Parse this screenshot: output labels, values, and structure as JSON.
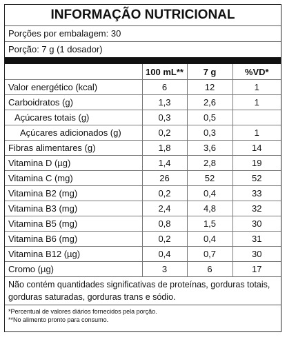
{
  "header": {
    "title": "INFORMAÇÃO NUTRICIONAL",
    "servings": "Porções por embalagem: 30",
    "portion": "Porção: 7 g (1 dosador)"
  },
  "table": {
    "columns": [
      "100 mL**",
      "7 g",
      "%VD*"
    ],
    "rows": [
      [
        "Valor energético (kcal)",
        "6",
        "12",
        "1"
      ],
      [
        "Carboidratos (g)",
        "1,3",
        "2,6",
        "1"
      ],
      [
        "Açúcares totais (g)",
        "0,3",
        "0,5",
        null
      ],
      [
        "Açúcares adicionados (g)",
        "0,2",
        "0,3",
        "1"
      ],
      [
        "Fibras alimentares (g)",
        "1,8",
        "3,6",
        "14"
      ],
      [
        "Vitamina D (µg)",
        "1,4",
        "2,8",
        "19"
      ],
      [
        "Vitamina C (mg)",
        "26",
        "52",
        "52"
      ],
      [
        "Vitamina B2 (mg)",
        "0,2",
        "0,4",
        "33"
      ],
      [
        "Vitamina B3 (mg)",
        "2,4",
        "4,8",
        "32"
      ],
      [
        "Vitamina B5 (mg)",
        "0,8",
        "1,5",
        "30"
      ],
      [
        "Vitamina B6 (mg)",
        "0,2",
        "0,4",
        "31"
      ],
      [
        "Vitamina B12 (µg)",
        "0,4",
        "0,7",
        "30"
      ],
      [
        "Cromo (µg)",
        "3",
        "6",
        "17"
      ]
    ]
  },
  "note": "Não contém quantidades significativas de proteínas, gorduras totais, gorduras saturadas, gorduras trans e sódio.",
  "footnotes": [
    "*Percentual de valores diários fornecidos pela porção.",
    "**No alimento pronto para consumo."
  ]
}
